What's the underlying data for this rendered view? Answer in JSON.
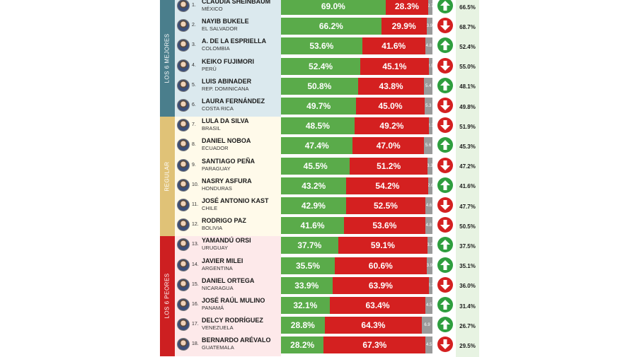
{
  "groups": [
    {
      "label": "LOS 6 MEJORES",
      "color": "#4a7e8c",
      "bg": "#dbe9ee",
      "rows": 6
    },
    {
      "label": "REGULAR",
      "color": "#e0c277",
      "bg": "#fffaea",
      "rows": 6
    },
    {
      "label": "LOS 6 PEORES",
      "color": "#cd1f21",
      "bg": "#fde9ea",
      "rows": 6
    }
  ],
  "colors": {
    "approve": "#5aab4a",
    "disapprove": "#d42020",
    "no_sabe": "#9a9a9a",
    "up": "#2e9e3e",
    "down": "#d42020",
    "prev_bg": "#e7f3e2"
  },
  "chart_data": {
    "type": "bar",
    "stacked": true,
    "orientation": "horizontal",
    "xlim": [
      0,
      100
    ],
    "categories": [
      "CLAUDIA SHEINBAUM",
      "NAYIB BUKELE",
      "A. DE LA ESPRIELLA",
      "KEIKO FUJIMORI",
      "LUIS ABINADER",
      "LAURA FERNÁNDEZ",
      "LULA DA SILVA",
      "DANIEL NOBOA",
      "SANTIAGO PEÑA",
      "NASRY ASFURA",
      "JOSÉ ANTONIO KAST",
      "RODRIGO PAZ",
      "YAMANDÚ ORSI",
      "JAVIER MILEI",
      "DANIEL ORTEGA",
      "JOSÉ RAÚL MULINO",
      "DELCY RODRÍGUEZ",
      "BERNARDO ARÉVALO"
    ],
    "series": [
      {
        "values": [
          69.0,
          66.2,
          53.6,
          52.4,
          50.8,
          49.7,
          48.5,
          47.4,
          45.5,
          43.2,
          42.9,
          41.6,
          37.7,
          35.5,
          33.9,
          32.1,
          28.8,
          28.2
        ]
      },
      {
        "values": [
          28.3,
          29.9,
          41.6,
          45.1,
          43.8,
          45.0,
          49.2,
          47.0,
          51.2,
          54.2,
          52.5,
          53.6,
          59.1,
          60.6,
          63.9,
          63.4,
          64.3,
          67.3
        ]
      },
      {
        "values": [
          2.7,
          3.9,
          4.8,
          2.5,
          5.4,
          5.3,
          2.3,
          5.6,
          3.3,
          2.6,
          4.6,
          4.8,
          3.2,
          3.9,
          2.2,
          4.5,
          6.9,
          4.5
        ]
      }
    ]
  },
  "rows": [
    {
      "rank": "1.",
      "name": "CLAUDIA SHEINBAUM",
      "country": "MÉXICO",
      "approve": 69.0,
      "approve_text": "69.0%",
      "disapprove": 28.3,
      "disapprove_text": "28.3%",
      "ns": 2.7,
      "ns_text": "2.7",
      "trend": "up",
      "trend_icon": "arrow-up-icon",
      "previous": "66.5%"
    },
    {
      "rank": "2.",
      "name": "NAYIB BUKELE",
      "country": "EL SALVADOR",
      "approve": 66.2,
      "approve_text": "66.2%",
      "disapprove": 29.9,
      "disapprove_text": "29.9%",
      "ns": 3.9,
      "ns_text": "3.9",
      "trend": "down",
      "trend_icon": "arrow-down-icon",
      "previous": "68.7%"
    },
    {
      "rank": "3.",
      "name": "A. DE LA ESPRIELLA",
      "country": "COLOMBIA",
      "approve": 53.6,
      "approve_text": "53.6%",
      "disapprove": 41.6,
      "disapprove_text": "41.6%",
      "ns": 4.8,
      "ns_text": "4.8",
      "trend": "up",
      "trend_icon": "arrow-up-icon",
      "previous": "52.4%"
    },
    {
      "rank": "4.",
      "name": "KEIKO FUJIMORI",
      "country": "PERÚ",
      "approve": 52.4,
      "approve_text": "52.4%",
      "disapprove": 45.1,
      "disapprove_text": "45.1%",
      "ns": 2.5,
      "ns_text": "2.5",
      "trend": "down",
      "trend_icon": "arrow-down-icon",
      "previous": "55.0%"
    },
    {
      "rank": "5.",
      "name": "LUIS ABINADER",
      "country": "REP. DOMINICANA",
      "approve": 50.8,
      "approve_text": "50.8%",
      "disapprove": 43.8,
      "disapprove_text": "43.8%",
      "ns": 5.4,
      "ns_text": "5.4",
      "trend": "up",
      "trend_icon": "arrow-up-icon",
      "previous": "48.1%"
    },
    {
      "rank": "6.",
      "name": "LAURA FERNÁNDEZ",
      "country": "COSTA RICA",
      "approve": 49.7,
      "approve_text": "49.7%",
      "disapprove": 45.0,
      "disapprove_text": "45.0%",
      "ns": 5.3,
      "ns_text": "5.3",
      "trend": "down",
      "trend_icon": "arrow-down-icon",
      "previous": "49.8%"
    },
    {
      "rank": "7.",
      "name": "LULA DA SILVA",
      "country": "BRASIL",
      "approve": 48.5,
      "approve_text": "48.5%",
      "disapprove": 49.2,
      "disapprove_text": "49.2%",
      "ns": 2.3,
      "ns_text": "2.3",
      "trend": "down",
      "trend_icon": "arrow-down-icon",
      "previous": "51.9%"
    },
    {
      "rank": "8.",
      "name": "DANIEL NOBOA",
      "country": "ECUADOR",
      "approve": 47.4,
      "approve_text": "47.4%",
      "disapprove": 47.0,
      "disapprove_text": "47.0%",
      "ns": 5.6,
      "ns_text": "5.6",
      "trend": "up",
      "trend_icon": "arrow-up-icon",
      "previous": "45.3%"
    },
    {
      "rank": "9.",
      "name": "SANTIAGO PEÑA",
      "country": "PARAGUAY",
      "approve": 45.5,
      "approve_text": "45.5%",
      "disapprove": 51.2,
      "disapprove_text": "51.2%",
      "ns": 3.3,
      "ns_text": "3.3",
      "trend": "down",
      "trend_icon": "arrow-down-icon",
      "previous": "47.2%"
    },
    {
      "rank": "10.",
      "name": "NASRY ASFURA",
      "country": "HONDURAS",
      "approve": 43.2,
      "approve_text": "43.2%",
      "disapprove": 54.2,
      "disapprove_text": "54.2%",
      "ns": 2.6,
      "ns_text": "2.6",
      "trend": "up",
      "trend_icon": "arrow-up-icon",
      "previous": "41.6%"
    },
    {
      "rank": "11.",
      "name": "JOSÉ ANTONIO KAST",
      "country": "CHILE",
      "approve": 42.9,
      "approve_text": "42.9%",
      "disapprove": 52.5,
      "disapprove_text": "52.5%",
      "ns": 4.6,
      "ns_text": "4.6",
      "trend": "down",
      "trend_icon": "arrow-down-icon",
      "previous": "47.7%"
    },
    {
      "rank": "12.",
      "name": "RODRIGO PAZ",
      "country": "BOLIVIA",
      "approve": 41.6,
      "approve_text": "41.6%",
      "disapprove": 53.6,
      "disapprove_text": "53.6%",
      "ns": 4.8,
      "ns_text": "4.8",
      "trend": "down",
      "trend_icon": "arrow-down-icon",
      "previous": "50.5%"
    },
    {
      "rank": "13.",
      "name": "YAMANDÚ ORSI",
      "country": "URUGUAY",
      "approve": 37.7,
      "approve_text": "37.7%",
      "disapprove": 59.1,
      "disapprove_text": "59.1%",
      "ns": 3.2,
      "ns_text": "3.2",
      "trend": "up",
      "trend_icon": "arrow-up-icon",
      "previous": "37.5%"
    },
    {
      "rank": "14.",
      "name": "JAVIER MILEI",
      "country": "ARGENTINA",
      "approve": 35.5,
      "approve_text": "35.5%",
      "disapprove": 60.6,
      "disapprove_text": "60.6%",
      "ns": 3.9,
      "ns_text": "3.9",
      "trend": "up",
      "trend_icon": "arrow-up-icon",
      "previous": "35.1%"
    },
    {
      "rank": "15.",
      "name": "DANIEL ORTEGA",
      "country": "NICARAGUA",
      "approve": 33.9,
      "approve_text": "33.9%",
      "disapprove": 63.9,
      "disapprove_text": "63.9%",
      "ns": 2.2,
      "ns_text": "2.2",
      "trend": "down",
      "trend_icon": "arrow-down-icon",
      "previous": "36.0%"
    },
    {
      "rank": "16.",
      "name": "JOSÉ RAÚL MULINO",
      "country": "PANAMÁ",
      "approve": 32.1,
      "approve_text": "32.1%",
      "disapprove": 63.4,
      "disapprove_text": "63.4%",
      "ns": 4.5,
      "ns_text": "4.5",
      "trend": "up",
      "trend_icon": "arrow-up-icon",
      "previous": "31.4%"
    },
    {
      "rank": "17.",
      "name": "DELCY RODRÍGUEZ",
      "country": "VENEZUELA",
      "approve": 28.8,
      "approve_text": "28.8%",
      "disapprove": 64.3,
      "disapprove_text": "64.3%",
      "ns": 6.9,
      "ns_text": "6.9",
      "trend": "up",
      "trend_icon": "arrow-up-icon",
      "previous": "26.7%"
    },
    {
      "rank": "18.",
      "name": "BERNARDO ARÉVALO",
      "country": "GUATEMALA",
      "approve": 28.2,
      "approve_text": "28.2%",
      "disapprove": 67.3,
      "disapprove_text": "67.3%",
      "ns": 4.5,
      "ns_text": "4.5",
      "trend": "down",
      "trend_icon": "arrow-down-icon",
      "previous": "29.5%"
    }
  ]
}
